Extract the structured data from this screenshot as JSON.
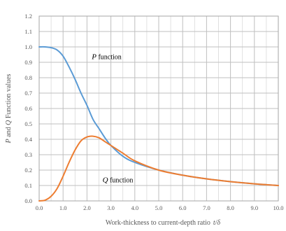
{
  "chart_data": {
    "type": "line",
    "xlabel_prefix": "Work-thickness to current-depth ratio",
    "xlabel_var": "t/δ",
    "ylabel_p": "P",
    "ylabel_and": " and ",
    "ylabel_q": "Q",
    "ylabel_suffix": " Function values",
    "xlim": [
      0,
      10
    ],
    "ylim": [
      0,
      1.2
    ],
    "x_ticks": [
      "0.0",
      "1.0",
      "2.0",
      "3.0",
      "4.0",
      "5.0",
      "6.0",
      "7.0",
      "8.0",
      "9.0",
      "10.0"
    ],
    "y_ticks": [
      "0.0",
      "0.1",
      "0.2",
      "0.3",
      "0.4",
      "0.5",
      "0.6",
      "0.7",
      "0.8",
      "0.9",
      "1.0",
      "1.1",
      "1.2"
    ],
    "grid": true,
    "minor_x_grid": true,
    "series": [
      {
        "name": "P function",
        "color": "#5B9BD5",
        "x": [
          0,
          0.25,
          0.5,
          0.75,
          1.0,
          1.25,
          1.5,
          1.75,
          2.0,
          2.25,
          2.5,
          2.75,
          3.0,
          3.5,
          4.0,
          5.0,
          6.0,
          7.0,
          8.0,
          9.0,
          10.0
        ],
        "y": [
          1.0,
          1.0,
          0.995,
          0.98,
          0.94,
          0.87,
          0.79,
          0.7,
          0.62,
          0.53,
          0.47,
          0.41,
          0.36,
          0.29,
          0.25,
          0.2,
          0.167,
          0.143,
          0.125,
          0.111,
          0.1
        ]
      },
      {
        "name": "Q function",
        "color": "#ED7D31",
        "x": [
          0,
          0.25,
          0.5,
          0.75,
          1.0,
          1.25,
          1.5,
          1.75,
          2.0,
          2.25,
          2.5,
          2.75,
          3.0,
          3.5,
          4.0,
          5.0,
          6.0,
          7.0,
          8.0,
          9.0,
          10.0
        ],
        "y": [
          0.0,
          0.005,
          0.03,
          0.08,
          0.16,
          0.25,
          0.33,
          0.39,
          0.415,
          0.42,
          0.41,
          0.385,
          0.36,
          0.31,
          0.26,
          0.2,
          0.167,
          0.143,
          0.125,
          0.111,
          0.1
        ]
      }
    ],
    "annotations": [
      {
        "var": "P",
        "text": " function",
        "x": 2.2,
        "y": 0.92
      },
      {
        "var": "Q",
        "text": " function",
        "x": 2.65,
        "y": 0.12
      }
    ]
  }
}
